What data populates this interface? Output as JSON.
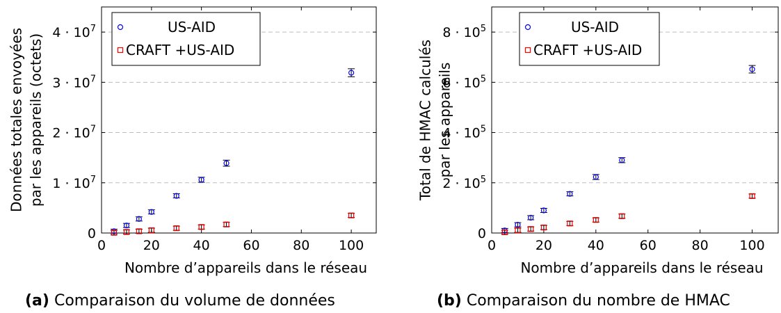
{
  "chart_data": [
    {
      "type": "scatter",
      "caption_tag": "(a)",
      "caption": "Comparaison du volume de données",
      "xlabel": "Nombre d’appareils dans le réseau",
      "ylabel_lines": [
        "Données totales envoyées",
        "par les appareils (octets)"
      ],
      "xlim": [
        0,
        110
      ],
      "ylim": [
        0,
        45000000
      ],
      "y_exp": 7,
      "xticks": [
        0,
        20,
        40,
        60,
        80,
        100
      ],
      "yticks": [
        0,
        10000000,
        20000000,
        30000000,
        40000000
      ],
      "ytick_labels": [
        {
          "mant": "0",
          "exp": ""
        },
        {
          "mant": "1 · 10",
          "exp": "7"
        },
        {
          "mant": "2 · 10",
          "exp": "7"
        },
        {
          "mant": "3 · 10",
          "exp": "7"
        },
        {
          "mant": "4 · 10",
          "exp": "7"
        }
      ],
      "grid": "horizontal-dashed",
      "legend_position": "top-left",
      "series": [
        {
          "name": "US-AID",
          "marker": "circle",
          "color": "#0000ff",
          "x": [
            5,
            10,
            15,
            20,
            30,
            40,
            50,
            100
          ],
          "y": [
            350000,
            1500000,
            2800000,
            4200000,
            7400000,
            10600000,
            13900000,
            31900000
          ],
          "err": [
            150000,
            200000,
            250000,
            300000,
            400000,
            500000,
            600000,
            800000
          ]
        },
        {
          "name": "CRAFT +US-AID",
          "marker": "square",
          "color": "#ff0000",
          "x": [
            5,
            10,
            15,
            20,
            30,
            40,
            50,
            100
          ],
          "y": [
            50000,
            200000,
            350000,
            550000,
            950000,
            1200000,
            1700000,
            3500000
          ],
          "err": [
            50000,
            80000,
            100000,
            120000,
            200000,
            200000,
            250000,
            400000
          ]
        }
      ]
    },
    {
      "type": "scatter",
      "caption_tag": "(b)",
      "caption": "Comparaison du nombre de HMAC",
      "xlabel": "Nombre d’appareils dans le réseau",
      "ylabel_lines": [
        "Total de HMAC calculés",
        "par les appareils"
      ],
      "xlim": [
        0,
        110
      ],
      "ylim": [
        0,
        900000
      ],
      "y_exp": 5,
      "xticks": [
        0,
        20,
        40,
        60,
        80,
        100
      ],
      "yticks": [
        0,
        200000,
        400000,
        600000,
        800000
      ],
      "ytick_labels": [
        {
          "mant": "0",
          "exp": ""
        },
        {
          "mant": "2 · 10",
          "exp": "5"
        },
        {
          "mant": "4 · 10",
          "exp": "5"
        },
        {
          "mant": "6 · 10",
          "exp": "5"
        },
        {
          "mant": "8 · 10",
          "exp": "5"
        }
      ],
      "grid": "horizontal-dashed",
      "legend_position": "top-left",
      "series": [
        {
          "name": "US-AID",
          "marker": "circle",
          "color": "#0000ff",
          "x": [
            5,
            10,
            15,
            20,
            30,
            40,
            50,
            100
          ],
          "y": [
            10000,
            33000,
            61000,
            90000,
            156000,
            223000,
            290000,
            652000
          ],
          "err": [
            3000,
            4000,
            5000,
            6000,
            8000,
            10000,
            10000,
            15000
          ]
        },
        {
          "name": "CRAFT +US-AID",
          "marker": "square",
          "color": "#ff0000",
          "x": [
            5,
            10,
            15,
            20,
            30,
            40,
            50,
            100
          ],
          "y": [
            3000,
            11000,
            16000,
            22000,
            38000,
            52000,
            67000,
            147000
          ],
          "err": [
            2000,
            3000,
            3000,
            4000,
            5000,
            6000,
            6000,
            8000
          ]
        }
      ]
    }
  ]
}
